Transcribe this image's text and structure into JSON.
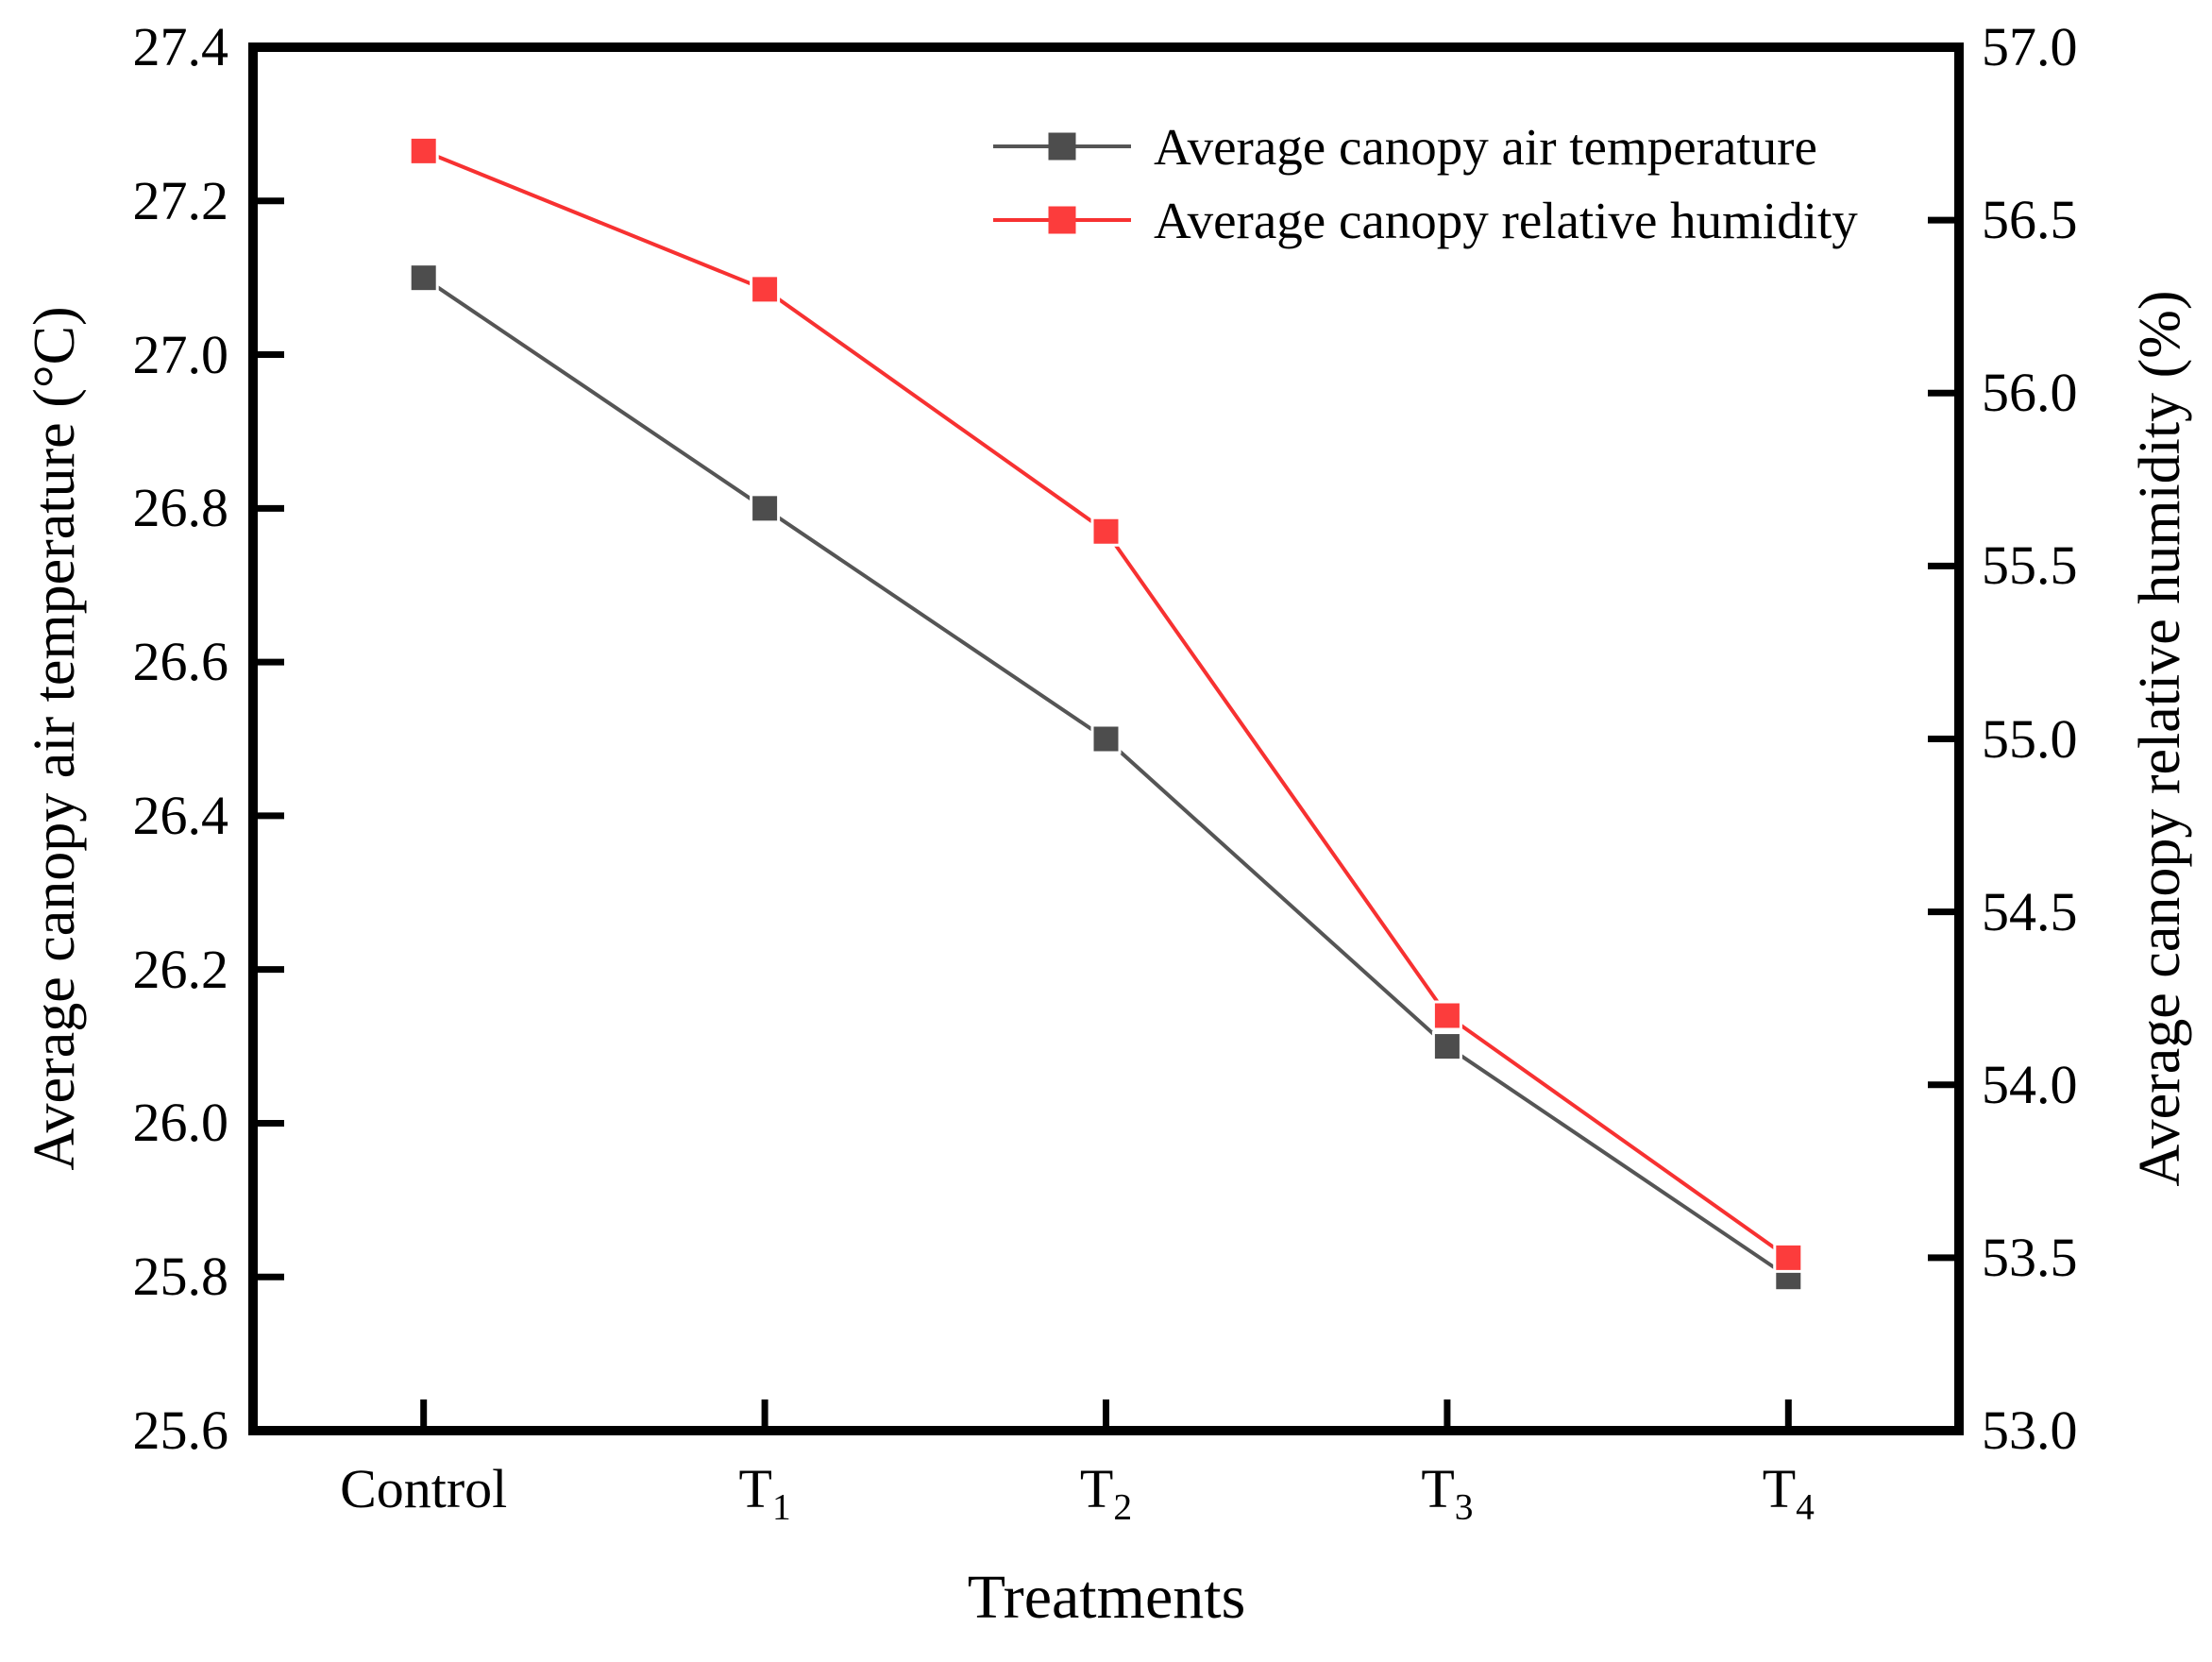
{
  "chart_data": {
    "type": "line",
    "categories": [
      {
        "label": "Control",
        "sub": ""
      },
      {
        "label": "T",
        "sub": "1"
      },
      {
        "label": "T",
        "sub": "2"
      },
      {
        "label": "T",
        "sub": "3"
      },
      {
        "label": "T",
        "sub": "4"
      }
    ],
    "series": [
      {
        "name": "Average canopy air temperature",
        "axis": "left",
        "marker": "square",
        "marker_color": "#4d4d4d",
        "line_color": "#555555",
        "values": [
          27.1,
          26.8,
          26.5,
          26.1,
          25.8
        ]
      },
      {
        "name": "Average canopy relative humidity",
        "axis": "right",
        "marker": "square",
        "marker_color": "#fc3c3c",
        "line_color": "#f73131",
        "values": [
          56.7,
          56.3,
          55.6,
          54.2,
          53.5
        ]
      }
    ],
    "left_axis": {
      "label": "Average canopy air temperature (°C)",
      "min": 25.6,
      "max": 27.4,
      "step": 0.2,
      "ticks": [
        "27.4",
        "27.2",
        "27.0",
        "26.8",
        "26.6",
        "26.4",
        "26.2",
        "26.0",
        "25.8",
        "25.6"
      ]
    },
    "right_axis": {
      "label": "Average canopy relative humidity (%)",
      "min": 53.0,
      "max": 57.0,
      "step": 0.5,
      "ticks": [
        "57.0",
        "56.5",
        "56.0",
        "55.5",
        "55.0",
        "54.5",
        "54.0",
        "53.5",
        "53.0"
      ]
    },
    "x_axis": {
      "label": "Treatments"
    },
    "legend": {
      "position": "top-right-inside"
    },
    "frame_color": "#000000",
    "grid": "off"
  }
}
